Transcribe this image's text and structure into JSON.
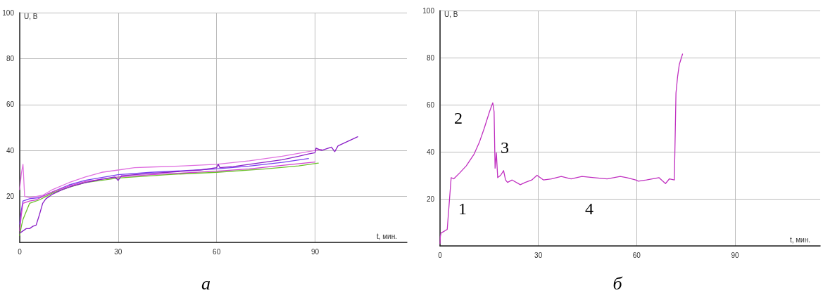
{
  "chart_data": [
    {
      "type": "line",
      "title": "а",
      "xlabel": "t, мин.",
      "ylabel": "U, В",
      "xlim": [
        0,
        118
      ],
      "xticks": [
        0,
        30,
        60,
        90
      ],
      "ylim": [
        0,
        100
      ],
      "yticks": [
        {
          "value": 0,
          "label": null
        },
        20,
        40,
        60,
        80,
        100
      ],
      "grid": true,
      "marker": "none",
      "line_style": "solid",
      "series": [
        {
          "color": "#e070e0",
          "x": [
            0,
            0.5,
            1,
            1.5,
            3,
            5,
            7,
            10,
            15,
            20,
            25,
            30,
            35,
            40,
            50,
            60,
            70,
            80,
            90,
            92
          ],
          "values": [
            23,
            30,
            34,
            20,
            19.5,
            20,
            20.5,
            23,
            26,
            28.5,
            30.5,
            31.5,
            32.5,
            32.8,
            33.3,
            34,
            35.5,
            37.5,
            40,
            40.5
          ]
        },
        {
          "color": "#7b3ff0",
          "x": [
            0,
            0.5,
            1,
            3,
            6,
            10,
            15,
            20,
            30,
            40,
            50,
            60,
            70,
            80,
            88
          ],
          "values": [
            8,
            14,
            18,
            19,
            19.5,
            22,
            25,
            27,
            29.5,
            30.5,
            31.2,
            32,
            33.2,
            34.8,
            36.5
          ]
        },
        {
          "color": "#d040d0",
          "x": [
            0,
            0.5,
            1,
            3,
            5,
            7,
            10,
            15,
            20,
            30,
            40,
            50,
            60,
            70,
            80,
            90
          ],
          "values": [
            5,
            12,
            17,
            18,
            18.5,
            20,
            22,
            24.5,
            26.5,
            28.5,
            29.5,
            30.2,
            31,
            32,
            33.5,
            35
          ]
        },
        {
          "color": "#6cc02c",
          "x": [
            0,
            0.5,
            1,
            3,
            6,
            8,
            10,
            15,
            20,
            30,
            45,
            60,
            75,
            85,
            91
          ],
          "values": [
            3,
            7,
            10,
            17,
            18.5,
            20,
            21.5,
            24,
            26,
            28,
            29.5,
            30.5,
            32,
            33.3,
            34.5
          ]
        },
        {
          "color": "#8b1fc7",
          "x": [
            0,
            1,
            2,
            3,
            4,
            5,
            6,
            7,
            8,
            9,
            10,
            13,
            16,
            20,
            25,
            29,
            30,
            31,
            35,
            40,
            45,
            50,
            55,
            60,
            60.5,
            61,
            65,
            70,
            75,
            80,
            85,
            88,
            90,
            90.3,
            92,
            95,
            96,
            97,
            100,
            103
          ],
          "values": [
            4,
            5,
            6,
            6,
            7,
            7.5,
            12,
            17,
            19,
            20,
            21,
            23,
            24.5,
            26,
            27.5,
            28.5,
            27,
            29,
            29.5,
            30,
            30.5,
            31,
            31.5,
            32.5,
            34,
            32.5,
            33,
            34,
            35,
            36,
            37.5,
            38.5,
            39,
            41,
            40,
            41.5,
            39.5,
            42,
            44,
            46
          ]
        }
      ]
    },
    {
      "type": "line",
      "title": "б",
      "xlabel": "t, мин.",
      "ylabel": "U, В",
      "xlim": [
        0,
        116
      ],
      "xticks": [
        0,
        30,
        60,
        90
      ],
      "ylim": [
        0,
        100
      ],
      "yticks": [
        {
          "value": 0,
          "label": null
        },
        20,
        40,
        60,
        80,
        100
      ],
      "grid": true,
      "marker": "none",
      "line_style": "solid",
      "annotations": [
        "1",
        "2",
        "3",
        "4"
      ],
      "series": [
        {
          "color": "#c030c0",
          "x": [
            0,
            0.1,
            0.3,
            1,
            2.2,
            3.4,
            4.2,
            6,
            8,
            10.4,
            12,
            13.5,
            15.1,
            16.1,
            16.5,
            16.8,
            17.2,
            17.6,
            18.5,
            19.4,
            20,
            20.6,
            22,
            24.5,
            26,
            28,
            29.6,
            31.6,
            34,
            37,
            40,
            43.3,
            47,
            51,
            55,
            57,
            59.7,
            60.5,
            63,
            66.8,
            68.8,
            70,
            71.5,
            71.8,
            72,
            72.5,
            73,
            74
          ],
          "values": [
            1,
            4,
            5.5,
            6,
            7,
            29,
            28.5,
            31,
            34,
            39,
            44,
            50,
            57,
            60.8,
            57,
            33,
            39.5,
            29,
            30,
            32,
            28,
            27,
            28,
            26,
            27,
            28,
            30,
            28,
            28.5,
            29.5,
            28.5,
            29.5,
            29,
            28.5,
            29.5,
            29,
            28,
            27.5,
            28,
            29,
            26.5,
            28.5,
            28,
            50,
            65,
            72,
            77,
            81.5
          ]
        }
      ]
    }
  ]
}
